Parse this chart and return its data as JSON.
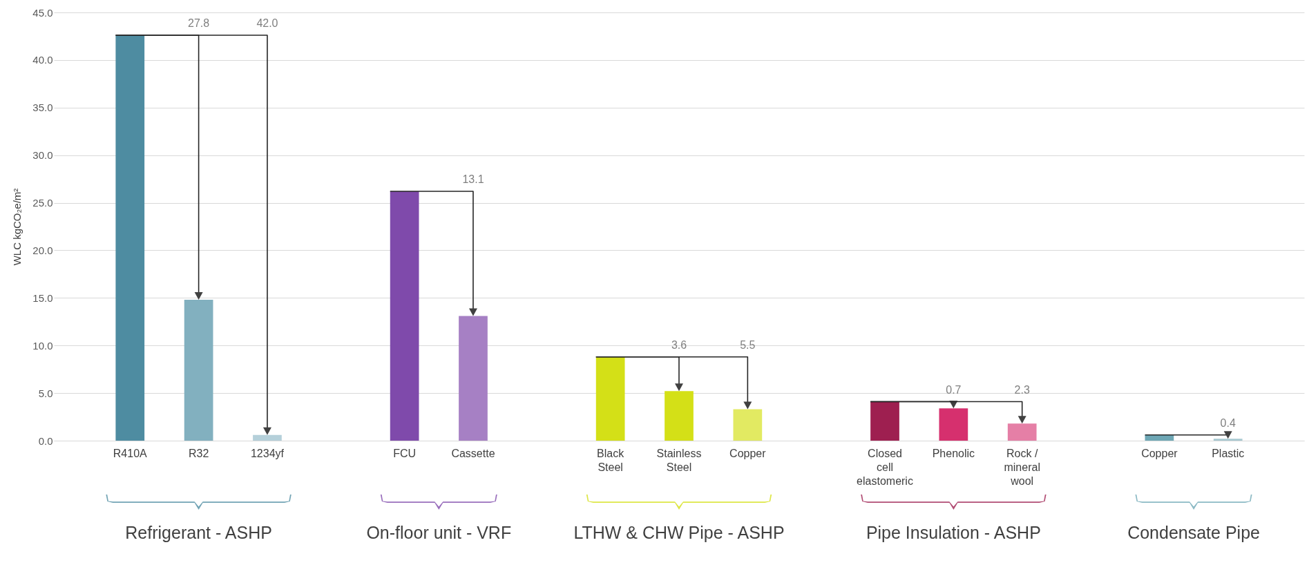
{
  "chart_data": {
    "type": "bar",
    "ylabel": "WLC kgCO₂e/m²",
    "categories": [
      "R410A",
      "R32",
      "1234yf",
      null,
      "FCU",
      "Cassette",
      null,
      "Black Steel",
      "Stainless Steel",
      "Copper",
      null,
      "Closed cell elastomeric",
      "Phenolic",
      "Rock / mineral wool",
      null,
      "Copper",
      "Plastic"
    ],
    "values": [
      42.6,
      14.8,
      0.6,
      null,
      26.2,
      13.1,
      null,
      8.8,
      5.2,
      3.3,
      null,
      4.1,
      3.4,
      1.8,
      null,
      0.6,
      0.2
    ],
    "colors": [
      "#4e8ca1",
      "#82b0bf",
      "#b5d0da",
      "#ffffff",
      "#7f4aab",
      "#a680c4",
      "#ffffff",
      "#d4e017",
      "#d4e017",
      "#e2ea62",
      "#ffffff",
      "#9e1f50",
      "#d6306e",
      "#e57fa6",
      "#ffffff",
      "#6ea7b5",
      "#a8c9d1"
    ],
    "ylim": [
      0,
      45
    ],
    "yticks": [
      {
        "value": 0,
        "label": "0.0"
      },
      {
        "value": 5,
        "label": "5.0"
      },
      {
        "value": 10,
        "label": "10.0"
      },
      {
        "value": 15,
        "label": "15.0"
      },
      {
        "value": 20,
        "label": "20.0"
      },
      {
        "value": 25,
        "label": "25.0"
      },
      {
        "value": 30,
        "label": "30.0"
      },
      {
        "value": 35,
        "label": "35.0"
      },
      {
        "value": 40,
        "label": "40.0"
      },
      {
        "value": 45,
        "label": "45.0"
      }
    ],
    "grid": "y",
    "annotations": [
      "27.8",
      "42.0",
      "13.1",
      "3.6",
      "5.5",
      {
        "text": "0.7",
        "x": "Phenolic",
        "y": 3.4
      },
      {
        "text": "2.3",
        "x": "Rock / mineral wool",
        "y": 1.8
      },
      {
        "text": "0.4",
        "x": "Plastic",
        "y": 0.2
      },
      "Refrigerant - ASHP",
      "On-floor unit - VRF",
      "LTHW & CHW Pipe - ASHP",
      "Pipe Insulation - ASHP",
      "Condensate Pipe"
    ]
  }
}
